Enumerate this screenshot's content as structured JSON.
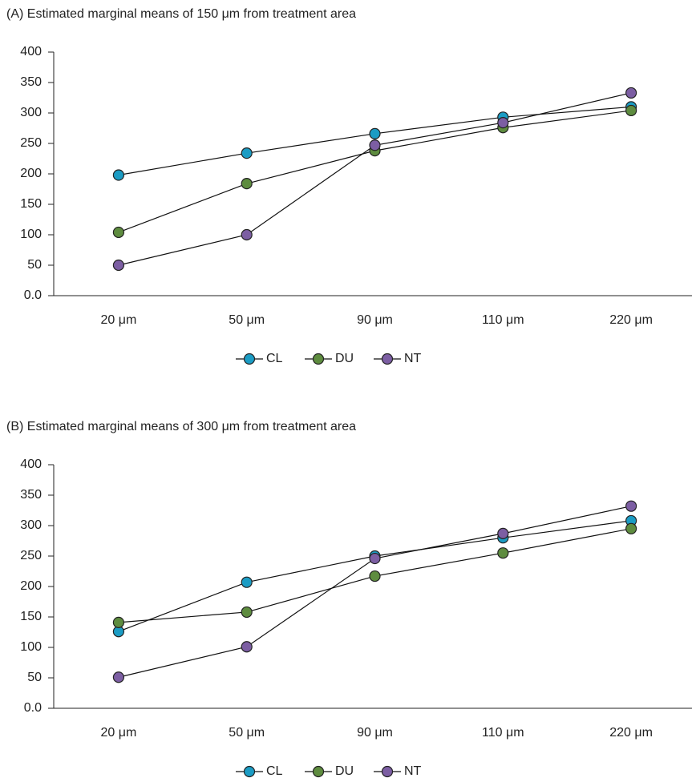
{
  "chart_data": [
    {
      "type": "line",
      "title": "(A) Estimated marginal means of 150 μm from treatment area",
      "categories": [
        "20 μm",
        "50 μm",
        "90 μm",
        "110 μm",
        "220 μm"
      ],
      "series": [
        {
          "name": "CL",
          "color": "#1b9cc4",
          "values": [
            198,
            234,
            266,
            293,
            310
          ]
        },
        {
          "name": "DU",
          "color": "#5e8c3f",
          "values": [
            104,
            184,
            238,
            276,
            304
          ]
        },
        {
          "name": "NT",
          "color": "#7c5ea3",
          "values": [
            50,
            100,
            247,
            284,
            333
          ]
        }
      ],
      "ylim": [
        0,
        400
      ],
      "yticks": [
        {
          "value": 0,
          "label": "0.0"
        },
        50,
        100,
        150,
        200,
        250,
        300,
        350,
        400
      ]
    },
    {
      "type": "line",
      "title": "(B) Estimated marginal means of 300 μm from treatment area",
      "categories": [
        "20 μm",
        "50 μm",
        "90 μm",
        "110 μm",
        "220 μm"
      ],
      "series": [
        {
          "name": "CL",
          "color": "#1b9cc4",
          "values": [
            126,
            207,
            250,
            280,
            308
          ]
        },
        {
          "name": "DU",
          "color": "#5e8c3f",
          "values": [
            141,
            158,
            217,
            255,
            295
          ]
        },
        {
          "name": "NT",
          "color": "#7c5ea3",
          "values": [
            51,
            101,
            246,
            287,
            332
          ]
        }
      ],
      "ylim": [
        0,
        400
      ],
      "yticks": [
        {
          "value": 0,
          "label": "0.0"
        },
        50,
        100,
        150,
        200,
        250,
        300,
        350,
        400
      ]
    }
  ]
}
